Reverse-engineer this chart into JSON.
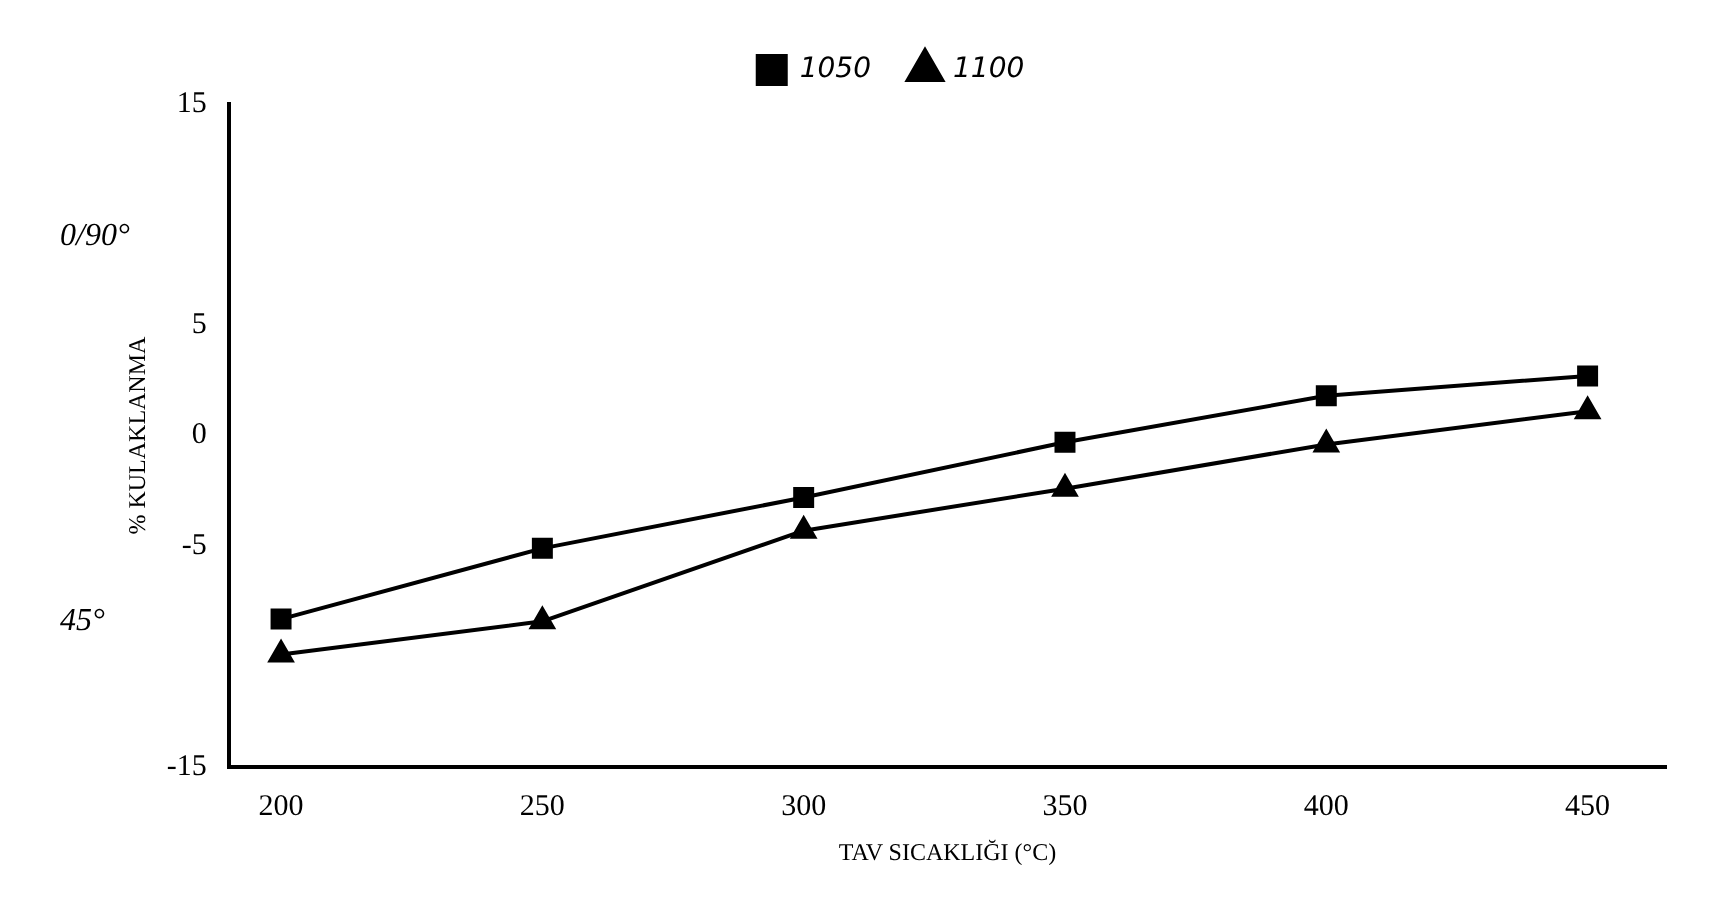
{
  "chart_data": {
    "type": "line",
    "xlabel": "TAV SICAKLIĞI (°C)",
    "ylabel": "% KULAKLANMA",
    "x": [
      200,
      250,
      300,
      350,
      400,
      450
    ],
    "series": [
      {
        "name": "1050",
        "color": "#000000",
        "marker": "square",
        "values": [
          -8.3,
          -5.1,
          -2.8,
          -0.3,
          1.8,
          2.7
        ]
      },
      {
        "name": "1100",
        "color": "#000000",
        "marker": "triangle",
        "values": [
          -9.9,
          -8.4,
          -4.3,
          -2.4,
          -0.4,
          1.1
        ]
      }
    ],
    "xlim": [
      190,
      465
    ],
    "xticks": [
      200,
      250,
      300,
      350,
      400,
      450
    ],
    "ylim": [
      -15,
      15
    ],
    "yticks": [
      15,
      5,
      0,
      -5,
      -15
    ],
    "annotations": [
      "0/90°",
      "45°"
    ],
    "grid": false,
    "legend": "top",
    "line_style": "solid"
  }
}
